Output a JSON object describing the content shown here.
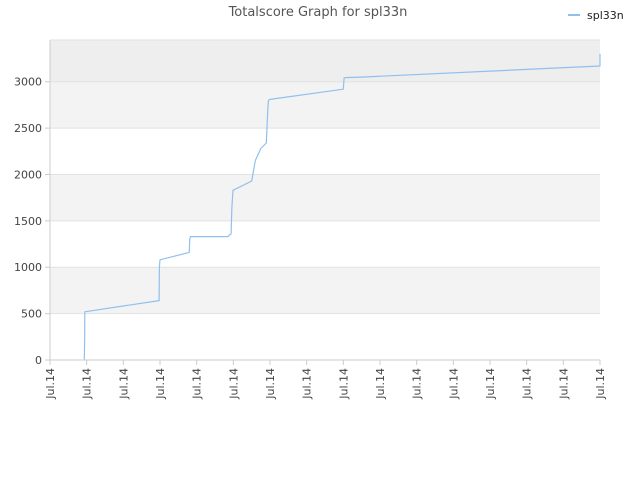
{
  "chart_data": {
    "type": "line",
    "title": "Totalscore Graph for spl33n",
    "legend": {
      "position": "top-right",
      "entries": [
        "spl33n"
      ]
    },
    "ylim": [
      0,
      3450
    ],
    "yticks": [
      0,
      500,
      1000,
      1500,
      2000,
      2500,
      3000
    ],
    "xticks": [
      "Jul.14",
      "Jul.14",
      "Jul.14",
      "Jul.14",
      "Jul.14",
      "Jul.14",
      "Jul.14",
      "Jul.14",
      "Jul.14",
      "Jul.14",
      "Jul.14",
      "Jul.14",
      "Jul.14",
      "Jul.14",
      "Jul.14",
      "Jul.14"
    ],
    "grid": true,
    "series": [
      {
        "name": "spl33n",
        "color": "#90c0ee",
        "x": [
          0.935,
          0.945,
          0.95,
          2.975,
          2.985,
          3.0,
          3.8,
          3.81,
          3.83,
          4.85,
          4.94,
          4.96,
          4.99,
          5.5,
          5.6,
          5.75,
          5.9,
          5.94,
          5.96,
          6.0,
          8.0,
          8.02,
          8.05,
          8.5,
          15.0,
          15.0
        ],
        "y": [
          0,
          250,
          520,
          640,
          1000,
          1080,
          1160,
          1300,
          1330,
          1330,
          1360,
          1650,
          1830,
          1930,
          2150,
          2280,
          2340,
          2700,
          2800,
          2810,
          2920,
          3040,
          3045,
          3050,
          3170,
          3300
        ]
      }
    ]
  }
}
